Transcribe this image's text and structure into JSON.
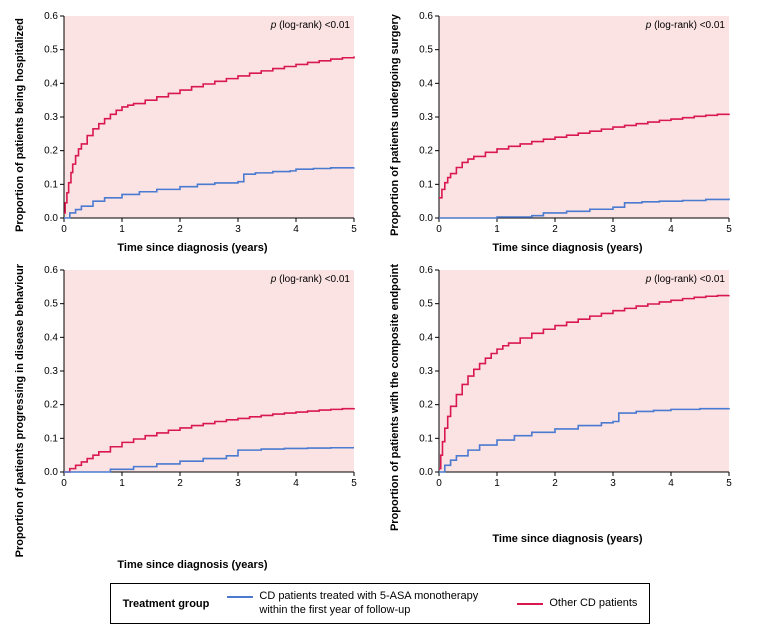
{
  "figure": {
    "panel_bg": "#fbe2e3",
    "axis_color": "#000000",
    "tick_fontsize": 10,
    "label_fontsize": 11,
    "xlabel": "Time since diagnosis (years)",
    "xlim": [
      0,
      5
    ],
    "xticks": [
      0,
      1,
      2,
      3,
      4,
      5
    ],
    "ylim": [
      0.0,
      0.6
    ],
    "yticks": [
      0.0,
      0.1,
      0.2,
      0.3,
      0.4,
      0.5,
      0.6
    ],
    "line_width": 1.6,
    "series_colors": {
      "asa": "#4a7bd0",
      "other": "#d9184f"
    },
    "p_annotation": {
      "prefix_italic": "p",
      "rest": " (log-rank) <0.01"
    },
    "panels": [
      {
        "key": "hosp",
        "ylabel": "Proportion of patients being hospitalized",
        "series": {
          "other": [
            [
              0.0,
              0.015
            ],
            [
              0.02,
              0.045
            ],
            [
              0.05,
              0.075
            ],
            [
              0.08,
              0.105
            ],
            [
              0.12,
              0.135
            ],
            [
              0.15,
              0.16
            ],
            [
              0.2,
              0.185
            ],
            [
              0.25,
              0.205
            ],
            [
              0.3,
              0.22
            ],
            [
              0.4,
              0.245
            ],
            [
              0.5,
              0.265
            ],
            [
              0.6,
              0.28
            ],
            [
              0.7,
              0.295
            ],
            [
              0.8,
              0.308
            ],
            [
              0.9,
              0.32
            ],
            [
              1.0,
              0.33
            ],
            [
              1.1,
              0.335
            ],
            [
              1.2,
              0.34
            ],
            [
              1.4,
              0.35
            ],
            [
              1.6,
              0.36
            ],
            [
              1.8,
              0.37
            ],
            [
              2.0,
              0.38
            ],
            [
              2.2,
              0.39
            ],
            [
              2.4,
              0.398
            ],
            [
              2.6,
              0.406
            ],
            [
              2.8,
              0.414
            ],
            [
              3.0,
              0.422
            ],
            [
              3.2,
              0.43
            ],
            [
              3.4,
              0.437
            ],
            [
              3.6,
              0.444
            ],
            [
              3.8,
              0.45
            ],
            [
              4.0,
              0.456
            ],
            [
              4.2,
              0.462
            ],
            [
              4.4,
              0.467
            ],
            [
              4.6,
              0.472
            ],
            [
              4.8,
              0.476
            ],
            [
              5.0,
              0.48
            ]
          ],
          "asa": [
            [
              0.0,
              0.0
            ],
            [
              0.1,
              0.015
            ],
            [
              0.2,
              0.025
            ],
            [
              0.3,
              0.035
            ],
            [
              0.5,
              0.05
            ],
            [
              0.7,
              0.06
            ],
            [
              1.0,
              0.07
            ],
            [
              1.3,
              0.078
            ],
            [
              1.6,
              0.085
            ],
            [
              2.0,
              0.093
            ],
            [
              2.3,
              0.1
            ],
            [
              2.6,
              0.104
            ],
            [
              3.0,
              0.108
            ],
            [
              3.1,
              0.13
            ],
            [
              3.3,
              0.134
            ],
            [
              3.6,
              0.138
            ],
            [
              3.9,
              0.14
            ],
            [
              4.0,
              0.145
            ],
            [
              4.3,
              0.147
            ],
            [
              4.6,
              0.149
            ],
            [
              5.0,
              0.15
            ]
          ]
        }
      },
      {
        "key": "surgery",
        "ylabel": "Proportion of patients undergoing surgery",
        "series": {
          "other": [
            [
              0.0,
              0.06
            ],
            [
              0.05,
              0.085
            ],
            [
              0.1,
              0.105
            ],
            [
              0.15,
              0.12
            ],
            [
              0.2,
              0.132
            ],
            [
              0.3,
              0.15
            ],
            [
              0.4,
              0.165
            ],
            [
              0.5,
              0.175
            ],
            [
              0.6,
              0.183
            ],
            [
              0.8,
              0.195
            ],
            [
              1.0,
              0.205
            ],
            [
              1.2,
              0.213
            ],
            [
              1.4,
              0.22
            ],
            [
              1.6,
              0.227
            ],
            [
              1.8,
              0.234
            ],
            [
              2.0,
              0.24
            ],
            [
              2.2,
              0.246
            ],
            [
              2.4,
              0.252
            ],
            [
              2.6,
              0.258
            ],
            [
              2.8,
              0.264
            ],
            [
              3.0,
              0.27
            ],
            [
              3.2,
              0.275
            ],
            [
              3.4,
              0.28
            ],
            [
              3.6,
              0.285
            ],
            [
              3.8,
              0.29
            ],
            [
              4.0,
              0.294
            ],
            [
              4.2,
              0.298
            ],
            [
              4.4,
              0.302
            ],
            [
              4.6,
              0.305
            ],
            [
              4.8,
              0.308
            ],
            [
              5.0,
              0.31
            ]
          ],
          "asa": [
            [
              0.0,
              0.0
            ],
            [
              1.0,
              0.003
            ],
            [
              1.6,
              0.007
            ],
            [
              1.8,
              0.015
            ],
            [
              2.2,
              0.02
            ],
            [
              2.6,
              0.026
            ],
            [
              3.0,
              0.032
            ],
            [
              3.2,
              0.045
            ],
            [
              3.5,
              0.048
            ],
            [
              3.8,
              0.05
            ],
            [
              4.2,
              0.052
            ],
            [
              4.6,
              0.055
            ],
            [
              5.0,
              0.058
            ]
          ]
        }
      },
      {
        "key": "progress",
        "ylabel": "Proportion of patients progressing in disease behaviour",
        "series": {
          "other": [
            [
              0.0,
              0.0
            ],
            [
              0.1,
              0.01
            ],
            [
              0.2,
              0.02
            ],
            [
              0.3,
              0.03
            ],
            [
              0.4,
              0.04
            ],
            [
              0.5,
              0.05
            ],
            [
              0.6,
              0.06
            ],
            [
              0.8,
              0.075
            ],
            [
              1.0,
              0.088
            ],
            [
              1.2,
              0.098
            ],
            [
              1.4,
              0.108
            ],
            [
              1.6,
              0.116
            ],
            [
              1.8,
              0.124
            ],
            [
              2.0,
              0.131
            ],
            [
              2.2,
              0.138
            ],
            [
              2.4,
              0.144
            ],
            [
              2.6,
              0.15
            ],
            [
              2.8,
              0.155
            ],
            [
              3.0,
              0.159
            ],
            [
              3.2,
              0.164
            ],
            [
              3.4,
              0.168
            ],
            [
              3.6,
              0.172
            ],
            [
              3.8,
              0.175
            ],
            [
              4.0,
              0.178
            ],
            [
              4.2,
              0.181
            ],
            [
              4.4,
              0.184
            ],
            [
              4.6,
              0.186
            ],
            [
              4.8,
              0.188
            ],
            [
              5.0,
              0.19
            ]
          ],
          "asa": [
            [
              0.0,
              0.0
            ],
            [
              0.8,
              0.008
            ],
            [
              1.2,
              0.016
            ],
            [
              1.6,
              0.024
            ],
            [
              2.0,
              0.032
            ],
            [
              2.4,
              0.04
            ],
            [
              2.8,
              0.048
            ],
            [
              3.0,
              0.065
            ],
            [
              3.4,
              0.068
            ],
            [
              3.8,
              0.07
            ],
            [
              4.2,
              0.071
            ],
            [
              4.6,
              0.072
            ],
            [
              5.0,
              0.072
            ]
          ]
        }
      },
      {
        "key": "composite",
        "ylabel": "Proportion of patients with the composite endpoint",
        "series": {
          "other": [
            [
              0.0,
              0.01
            ],
            [
              0.03,
              0.05
            ],
            [
              0.06,
              0.09
            ],
            [
              0.1,
              0.13
            ],
            [
              0.15,
              0.165
            ],
            [
              0.2,
              0.195
            ],
            [
              0.3,
              0.23
            ],
            [
              0.4,
              0.26
            ],
            [
              0.5,
              0.285
            ],
            [
              0.6,
              0.305
            ],
            [
              0.7,
              0.322
            ],
            [
              0.8,
              0.338
            ],
            [
              0.9,
              0.352
            ],
            [
              1.0,
              0.365
            ],
            [
              1.1,
              0.375
            ],
            [
              1.2,
              0.383
            ],
            [
              1.4,
              0.398
            ],
            [
              1.6,
              0.412
            ],
            [
              1.8,
              0.424
            ],
            [
              2.0,
              0.435
            ],
            [
              2.2,
              0.445
            ],
            [
              2.4,
              0.454
            ],
            [
              2.6,
              0.463
            ],
            [
              2.8,
              0.471
            ],
            [
              3.0,
              0.479
            ],
            [
              3.2,
              0.486
            ],
            [
              3.4,
              0.493
            ],
            [
              3.6,
              0.499
            ],
            [
              3.8,
              0.505
            ],
            [
              4.0,
              0.51
            ],
            [
              4.2,
              0.515
            ],
            [
              4.4,
              0.519
            ],
            [
              4.6,
              0.522
            ],
            [
              4.8,
              0.524
            ],
            [
              5.0,
              0.525
            ]
          ],
          "asa": [
            [
              0.0,
              0.0
            ],
            [
              0.1,
              0.02
            ],
            [
              0.2,
              0.035
            ],
            [
              0.3,
              0.048
            ],
            [
              0.5,
              0.065
            ],
            [
              0.7,
              0.08
            ],
            [
              1.0,
              0.095
            ],
            [
              1.3,
              0.108
            ],
            [
              1.6,
              0.118
            ],
            [
              2.0,
              0.128
            ],
            [
              2.4,
              0.138
            ],
            [
              2.8,
              0.146
            ],
            [
              3.0,
              0.15
            ],
            [
              3.1,
              0.175
            ],
            [
              3.4,
              0.18
            ],
            [
              3.7,
              0.183
            ],
            [
              4.0,
              0.186
            ],
            [
              4.5,
              0.188
            ],
            [
              5.0,
              0.19
            ]
          ]
        }
      }
    ]
  },
  "legend": {
    "title": "Treatment group",
    "items": [
      {
        "key": "asa",
        "color": "#4a7bd0",
        "label": "CD patients treated with 5-ASA monotherapy within the first year of follow-up"
      },
      {
        "key": "other",
        "color": "#d9184f",
        "label": "Other CD patients"
      }
    ]
  }
}
